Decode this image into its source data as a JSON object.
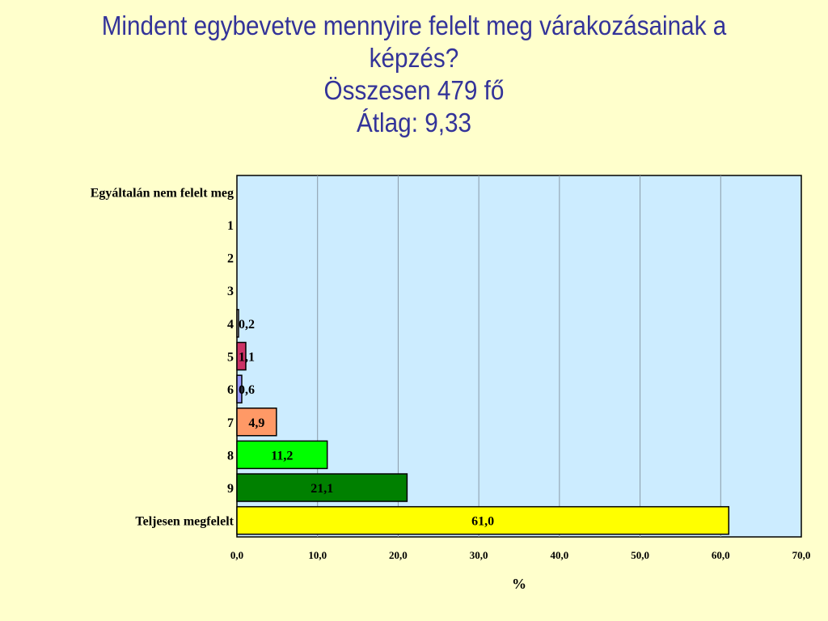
{
  "title_lines": [
    "Mindent egybevetve mennyire felelt meg várakozásainak a",
    "képzés?",
    "Összesen 479 fő",
    "Átlag: 9,33"
  ],
  "chart_data": {
    "type": "bar",
    "orientation": "horizontal",
    "categories": [
      "Egyáltalán nem felelt meg",
      "1",
      "2",
      "3",
      "4",
      "5",
      "6",
      "7",
      "8",
      "9",
      "Teljesen megfelelt"
    ],
    "values": [
      0,
      0,
      0,
      0,
      0.2,
      1.1,
      0.6,
      4.9,
      11.2,
      21.1,
      61.0
    ],
    "data_labels": [
      "",
      "",
      "",
      "",
      "0,2",
      "1,1",
      "0,6",
      "4,9",
      "11,2",
      "21,1",
      "61,0"
    ],
    "bar_colors": [
      "#ffffff",
      "#ffffff",
      "#ffffff",
      "#ffffff",
      "#ffffff",
      "#cc3366",
      "#9999ff",
      "#ff9966",
      "#00ff00",
      "#008000",
      "#ffff00"
    ],
    "xlabel": "%",
    "ylabel": "",
    "xlim": [
      0,
      70
    ],
    "x_ticks": [
      0,
      10,
      20,
      30,
      40,
      50,
      60,
      70
    ],
    "x_tick_labels": [
      "0,0",
      "10,0",
      "20,0",
      "30,0",
      "40,0",
      "50,0",
      "60,0",
      "70,0"
    ],
    "grid": "vertical",
    "plot_background": "#ccecff",
    "legend": "none"
  }
}
